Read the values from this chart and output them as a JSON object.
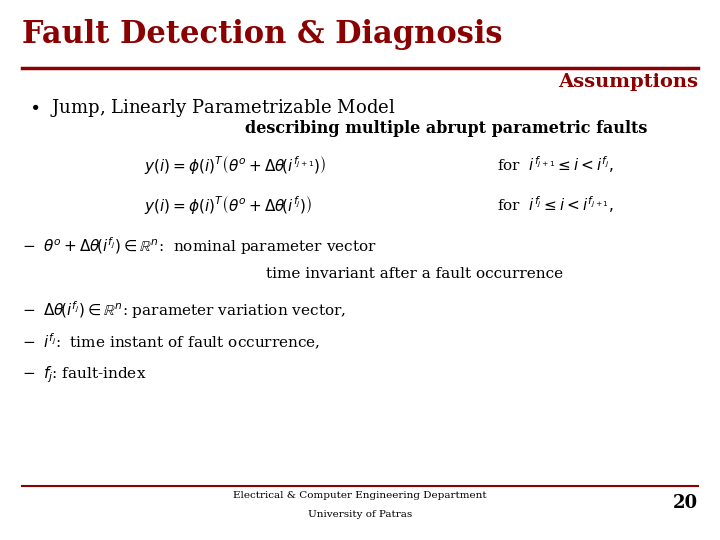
{
  "title": "Fault Detection & Diagnosis",
  "subtitle": "Assumptions",
  "title_color": "#8B0000",
  "subtitle_color": "#8B0000",
  "bg_color": "#FFFFFF",
  "line_color": "#8B0000",
  "text_color": "#000000",
  "bullet_text": "Jump, Linearly Parametrizable Model",
  "bold_text": "describing multiple abrupt parametric faults",
  "footer1": "Electrical & Computer Engineering Department",
  "footer2": "University of Patras",
  "page_num": "20"
}
